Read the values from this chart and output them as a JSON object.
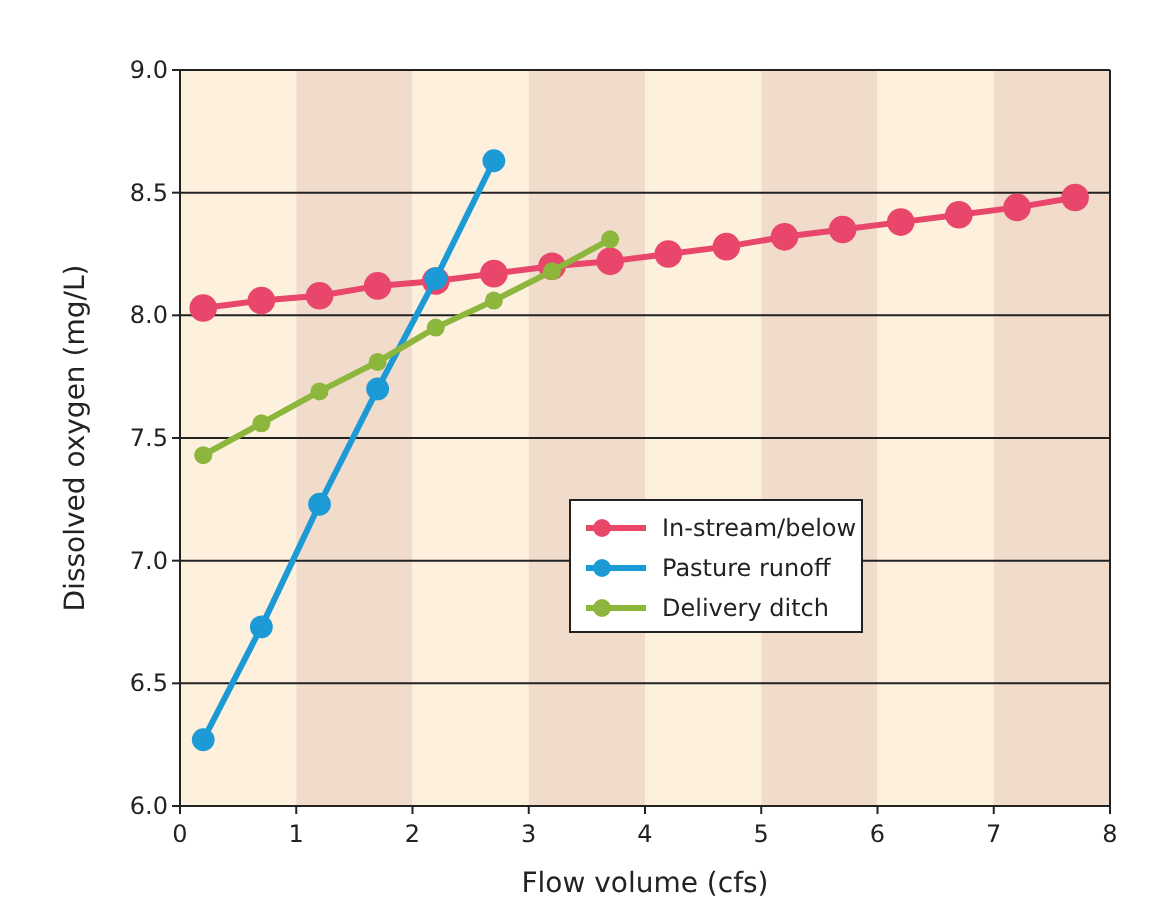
{
  "chart_data": {
    "type": "line",
    "xlabel": "Flow volume (cfs)",
    "ylabel": "Dissolved oxygen (mg/L)",
    "xlim": [
      0,
      8
    ],
    "xticks": [
      0,
      1,
      2,
      3,
      4,
      5,
      6,
      7,
      8
    ],
    "ylim": [
      6,
      9
    ],
    "yticks": [
      {
        "value": 6,
        "label": "6.0"
      },
      {
        "value": 6.5,
        "label": "6.5"
      },
      {
        "value": 7,
        "label": "7.0"
      },
      {
        "value": 7.5,
        "label": "7.5"
      },
      {
        "value": 8,
        "label": "8.0"
      },
      {
        "value": 8.5,
        "label": "8.5"
      },
      {
        "value": 9,
        "label": "9.0"
      }
    ],
    "grid": "y",
    "legend": "right",
    "marker": "circle",
    "line_style": "solid",
    "series": [
      {
        "name": "In-stream/below",
        "color": "#e8466a",
        "x": [
          0.2,
          0.7,
          1.2,
          1.7,
          2.2,
          2.7,
          3.2,
          3.7,
          4.2,
          4.7,
          5.2,
          5.7,
          6.2,
          6.7,
          7.2,
          7.7
        ],
        "values": [
          8.03,
          8.06,
          8.08,
          8.12,
          8.14,
          8.17,
          8.2,
          8.22,
          8.25,
          8.28,
          8.32,
          8.35,
          8.38,
          8.41,
          8.44,
          8.48
        ]
      },
      {
        "name": "Pasture runoff",
        "color": "#1b9ad6",
        "x": [
          0.2,
          0.7,
          1.2,
          1.7,
          2.2,
          2.7
        ],
        "values": [
          6.27,
          6.73,
          7.23,
          7.7,
          8.15,
          8.63
        ]
      },
      {
        "name": "Delivery ditch",
        "color": "#8cb63c",
        "x": [
          0.2,
          0.7,
          1.2,
          1.7,
          2.2,
          2.7,
          3.2,
          3.7
        ],
        "values": [
          7.43,
          7.56,
          7.69,
          7.81,
          7.95,
          8.06,
          8.18,
          8.31
        ]
      }
    ]
  }
}
